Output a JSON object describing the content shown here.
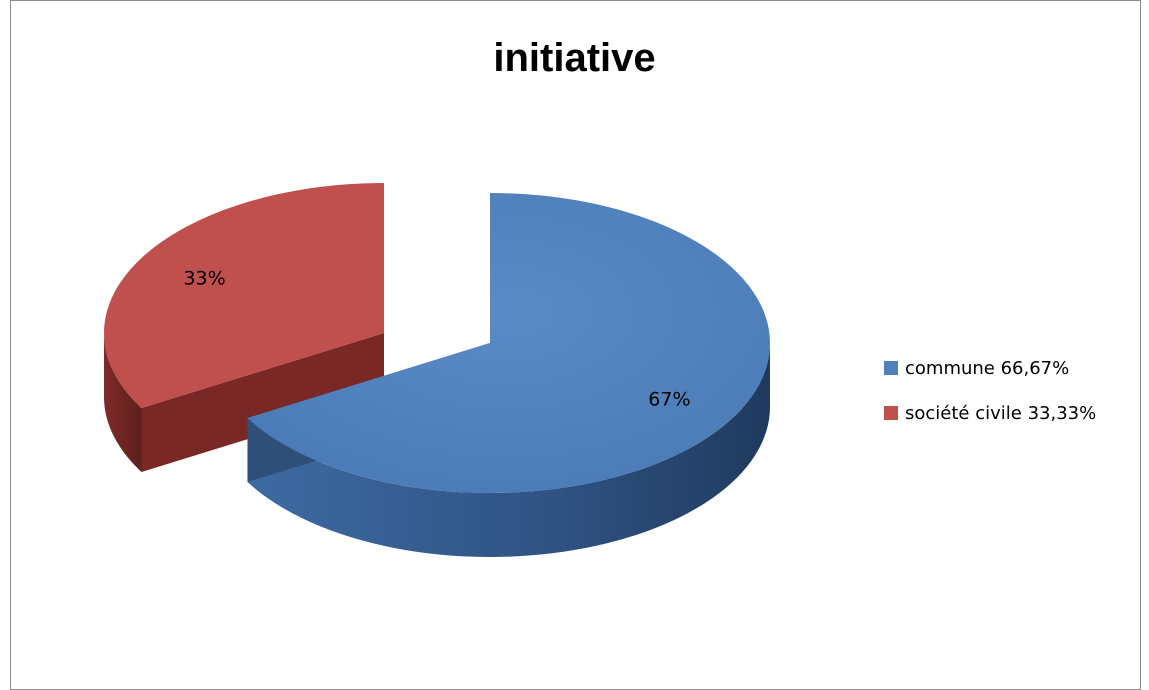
{
  "chart_data": {
    "type": "pie",
    "title": "initiative",
    "labels": [
      "commune 66,67%",
      "société civile 33,33%"
    ],
    "values": [
      66.67,
      33.33
    ],
    "data_labels": [
      "67%",
      "33%"
    ],
    "colors": [
      "#4f81bd",
      "#c0504d"
    ],
    "side_colors": [
      "#2f4f78",
      "#7a2826"
    ],
    "legend_position": "right",
    "style": "3d-exploded"
  }
}
